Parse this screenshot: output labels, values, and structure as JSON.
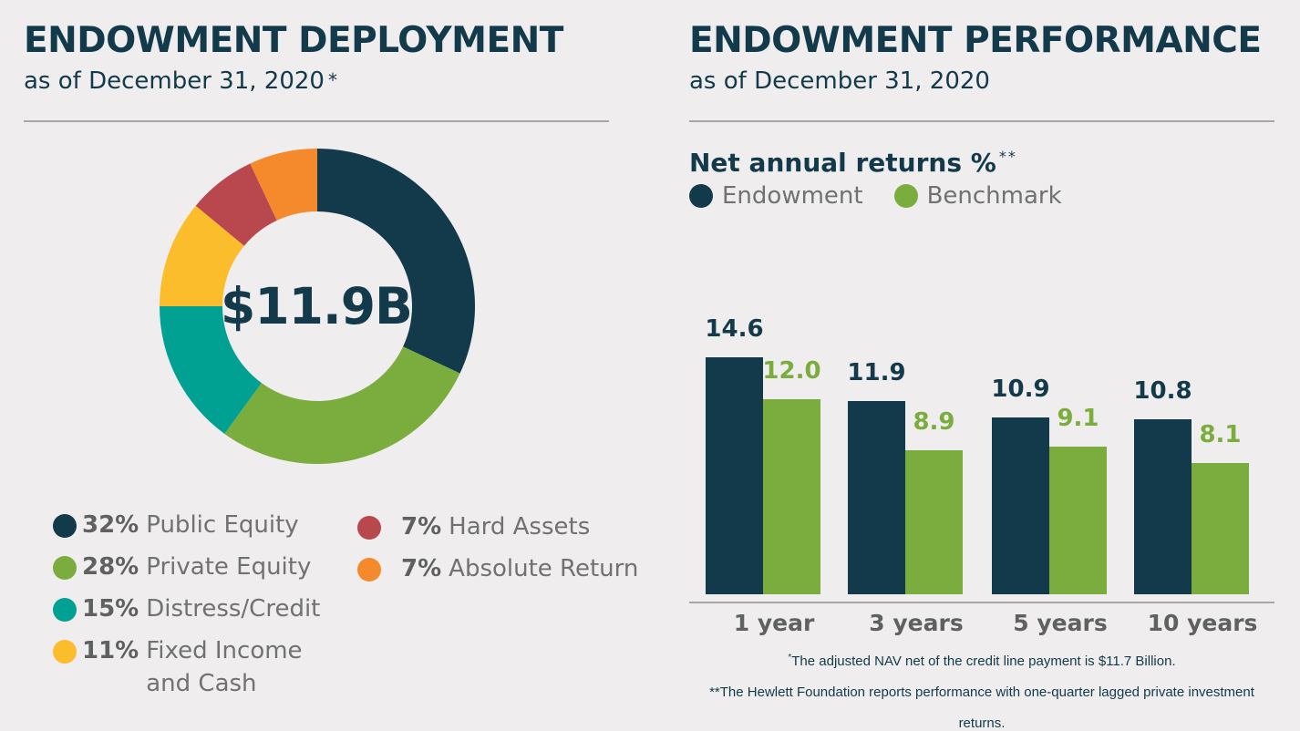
{
  "left": {
    "title": "ENDOWMENT DEPLOYMENT",
    "subtitle": "as of December 31, 2020",
    "subtitle_mark": "*",
    "center_label": "$11.9B"
  },
  "right": {
    "title": "ENDOWMENT PERFORMANCE",
    "subtitle": "as of December 31, 2020",
    "chart_title": "Net annual returns %",
    "chart_title_mark": "**"
  },
  "colors": {
    "navy": "#123a4b",
    "green": "#7bad3e",
    "teal": "#00a193",
    "yellow": "#fbbd2b",
    "red": "#b9474e",
    "orange": "#f58a2d"
  },
  "chart_data": [
    {
      "type": "pie",
      "categories": [
        "Public Equity",
        "Private Equity",
        "Distress/Credit",
        "Fixed Income and Cash",
        "Hard Assets",
        "Absolute Return"
      ],
      "values": [
        32,
        28,
        15,
        11,
        7,
        7
      ],
      "value_labels": [
        "32%",
        "28%",
        "15%",
        "11%",
        "7%",
        "7%"
      ],
      "legend_lines": [
        [
          "Public Equity"
        ],
        [
          "Private Equity"
        ],
        [
          "Distress/Credit"
        ],
        [
          "Fixed Income",
          "and Cash"
        ],
        [
          "Hard Assets"
        ],
        [
          "Absolute Return"
        ]
      ],
      "colors": [
        "#123a4b",
        "#7bad3e",
        "#00a193",
        "#fbbd2b",
        "#b9474e",
        "#f58a2d"
      ],
      "donut": true,
      "center_text": "$11.9B",
      "legend_position": "bottom"
    },
    {
      "type": "bar",
      "categories": [
        "1 year",
        "3 years",
        "5 years",
        "10 years"
      ],
      "series": [
        {
          "name": "Endowment",
          "values": [
            14.6,
            11.9,
            10.9,
            10.8
          ],
          "labels": [
            "14.6",
            "11.9",
            "10.9",
            "10.8"
          ],
          "color": "#123a4b"
        },
        {
          "name": "Benchmark",
          "values": [
            12.0,
            8.9,
            9.1,
            8.1
          ],
          "labels": [
            "12.0",
            "8.9",
            "9.1",
            "8.1"
          ],
          "color": "#7bad3e"
        }
      ],
      "title": "Net annual returns %",
      "legend_position": "top-left",
      "grid": false
    }
  ],
  "footnotes": {
    "note1_mark": "*",
    "note1": "The adjusted NAV net of the credit line payment is $11.7 Billion.",
    "note2": "**The Hewlett Foundation reports performance with one-quarter lagged private investment",
    "note2_cont": "returns."
  }
}
